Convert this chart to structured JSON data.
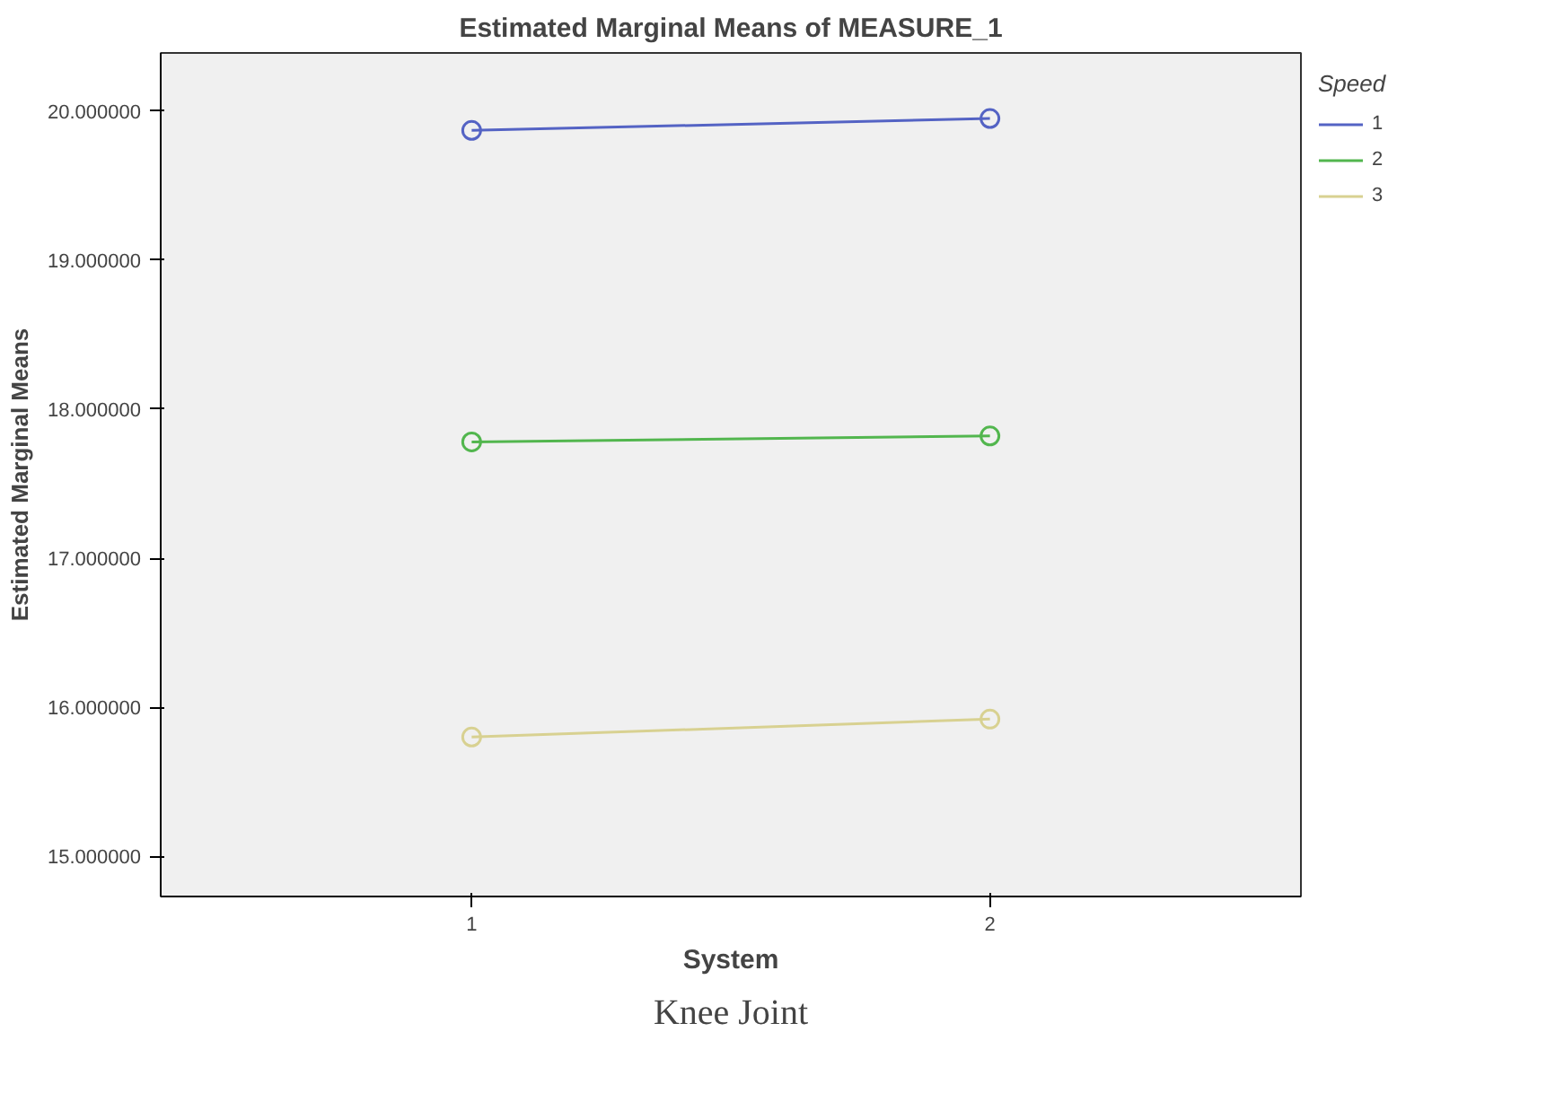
{
  "chart_data": {
    "type": "line",
    "title": "Estimated Marginal Means of MEASURE_1",
    "xlabel": "System",
    "ylabel": "Estimated Marginal Means",
    "legend_title": "Speed",
    "annotations": [
      "Knee Joint"
    ],
    "x": [
      1,
      2
    ],
    "xlim": [
      0.4,
      2.6
    ],
    "xticks": [
      1,
      2
    ],
    "ylim": [
      14.73,
      20.39
    ],
    "yticks": [
      {
        "value": 15,
        "label": "15.000000"
      },
      {
        "value": 16,
        "label": "16.000000"
      },
      {
        "value": 17,
        "label": "17.000000"
      },
      {
        "value": 18,
        "label": "18.000000"
      },
      {
        "value": 19,
        "label": "19.000000"
      },
      {
        "value": 20,
        "label": "20.000000"
      }
    ],
    "series": [
      {
        "name": "1",
        "color": "#5463c4",
        "values": [
          19.87,
          19.95
        ]
      },
      {
        "name": "2",
        "color": "#52b64e",
        "values": [
          17.78,
          17.82
        ]
      },
      {
        "name": "3",
        "color": "#d8d191",
        "values": [
          15.8,
          15.92
        ]
      }
    ],
    "marker": "circle",
    "line_style": "solid",
    "grid": false,
    "legend": "top right"
  }
}
